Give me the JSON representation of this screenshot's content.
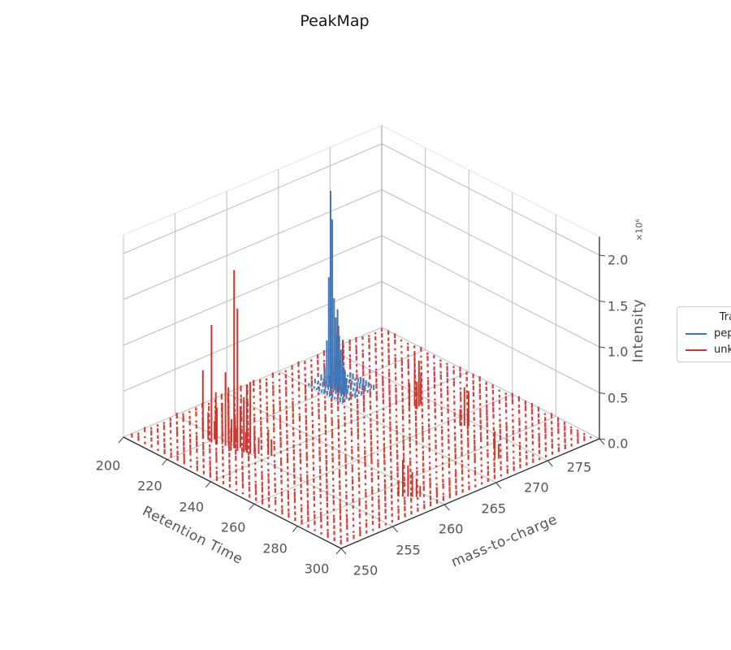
{
  "title": "PeakMap",
  "legend": {
    "title": "Trace",
    "entries": [
      {
        "label": "peptide",
        "color": "#3f76b8"
      },
      {
        "label": "unknown",
        "color": "#d0342c"
      }
    ]
  },
  "chart_data": {
    "type": "scatter",
    "subtype": "3d-stem-peakmap",
    "title": "PeakMap",
    "grid": "on",
    "legend_position": "center-right",
    "x_axis": {
      "label": "Retention Time",
      "ticks": [
        200,
        220,
        240,
        260,
        280,
        300
      ],
      "range": [
        200,
        300
      ]
    },
    "y_axis": {
      "label": "mass-to-charge",
      "ticks": [
        250,
        255,
        260,
        265,
        270,
        275
      ],
      "range": [
        250,
        275
      ]
    },
    "z_axis": {
      "label": "Intensity",
      "tick_labels": [
        "0.0",
        "0.5",
        "1.0",
        "1.5",
        "2.0"
      ],
      "tick_values_e6": [
        0.0,
        0.5,
        1.0,
        1.5,
        2.0
      ],
      "multiplier": "×10⁶",
      "range_e6": [
        0,
        2.2
      ]
    },
    "wall_grid_z_e6": [
      0.5,
      1.0,
      1.5,
      2.0
    ],
    "series": [
      {
        "name": "unknown",
        "color": "#d0342c",
        "peaks_rt_mz_intensity_e6": [
          [
            217.5,
            254.0,
            0.75
          ],
          [
            219,
            254.2,
            0.3
          ],
          [
            220,
            254.6,
            0.2
          ],
          [
            221,
            254.1,
            1.28
          ],
          [
            222,
            254.3,
            0.55
          ],
          [
            223,
            254.2,
            0.4
          ],
          [
            224,
            254.5,
            0.45
          ],
          [
            224.5,
            255.0,
            0.6
          ],
          [
            225,
            255.2,
            0.25
          ],
          [
            225.5,
            254.5,
            0.8
          ],
          [
            226,
            255.4,
            0.15
          ],
          [
            226.5,
            254.6,
            0.5
          ],
          [
            227.5,
            255.0,
            0.32
          ],
          [
            228.5,
            254.7,
            1.94
          ],
          [
            229,
            254.3,
            0.25
          ],
          [
            229.5,
            255.1,
            0.45
          ],
          [
            230.5,
            254.6,
            1.55
          ],
          [
            231.5,
            255.3,
            0.7
          ],
          [
            232,
            255.1,
            0.2
          ],
          [
            232.5,
            254.8,
            0.6
          ],
          [
            233.5,
            254.9,
            0.35
          ],
          [
            234.5,
            255.0,
            0.78
          ],
          [
            235.5,
            255.2,
            0.3
          ],
          [
            236.5,
            255.4,
            0.18
          ],
          [
            239,
            255.8,
            0.28
          ],
          [
            240,
            255.9,
            0.18
          ],
          [
            210.5,
            268.6,
            0.45
          ],
          [
            211.5,
            268.8,
            0.3
          ],
          [
            212.2,
            268.3,
            0.2
          ],
          [
            244.5,
            268.3,
            0.25
          ],
          [
            245.5,
            268.6,
            0.6
          ],
          [
            246.5,
            268.8,
            0.5
          ],
          [
            247.5,
            268.4,
            0.3
          ],
          [
            246,
            269.1,
            0.35
          ],
          [
            245,
            269.3,
            0.2
          ],
          [
            264.5,
            269.0,
            0.18
          ],
          [
            265.5,
            269.2,
            0.42
          ],
          [
            266.5,
            269.4,
            0.38
          ],
          [
            267.5,
            269.1,
            0.22
          ],
          [
            288,
            267.4,
            0.3
          ],
          [
            288.8,
            267.6,
            0.16
          ],
          [
            286.5,
            258.4,
            0.18
          ],
          [
            287.5,
            258.6,
            0.4
          ],
          [
            288.5,
            258.9,
            0.34
          ],
          [
            289.5,
            259.1,
            0.27
          ],
          [
            290.5,
            259.3,
            0.2
          ],
          [
            291.2,
            259.5,
            0.12
          ]
        ],
        "noise_grid": {
          "rt_min": 202,
          "rt_max": 298,
          "rt_step": 3,
          "mz_min": 250.4,
          "mz_max": 274.6,
          "mz_step": 0.62,
          "intensity_min_e6": 0.018,
          "intensity_max_e6": 0.065,
          "seed": 11
        }
      },
      {
        "name": "peptide",
        "color": "#3f76b8",
        "peaks_rt_mz_intensity_e6": [
          [
            216.5,
            266,
            0.2
          ],
          [
            217.5,
            266,
            0.5
          ],
          [
            218.4,
            266,
            1.2
          ],
          [
            219.2,
            266,
            2.15
          ],
          [
            220,
            266,
            1.85
          ],
          [
            220.8,
            266,
            1.0
          ],
          [
            221.6,
            266,
            0.8
          ],
          [
            222.4,
            266,
            0.9
          ],
          [
            223.2,
            266,
            0.62
          ],
          [
            224,
            266,
            0.48
          ],
          [
            224.8,
            266,
            0.36
          ],
          [
            225.6,
            266,
            0.28
          ],
          [
            226.5,
            266,
            0.2
          ],
          [
            218,
            266.6,
            0.3
          ],
          [
            219,
            266.6,
            0.55
          ],
          [
            220,
            266.6,
            0.4
          ],
          [
            221,
            266.6,
            0.3
          ],
          [
            222,
            266.6,
            0.22
          ],
          [
            223,
            266.6,
            0.16
          ]
        ],
        "noise_grid": {
          "rt_min": 213.5,
          "rt_max": 230,
          "rt_step": 1.2,
          "mz_min": 265.1,
          "mz_max": 268.1,
          "mz_step": 0.6,
          "intensity_min_e6": 0.02,
          "intensity_max_e6": 0.07,
          "seed": 5
        }
      }
    ]
  }
}
